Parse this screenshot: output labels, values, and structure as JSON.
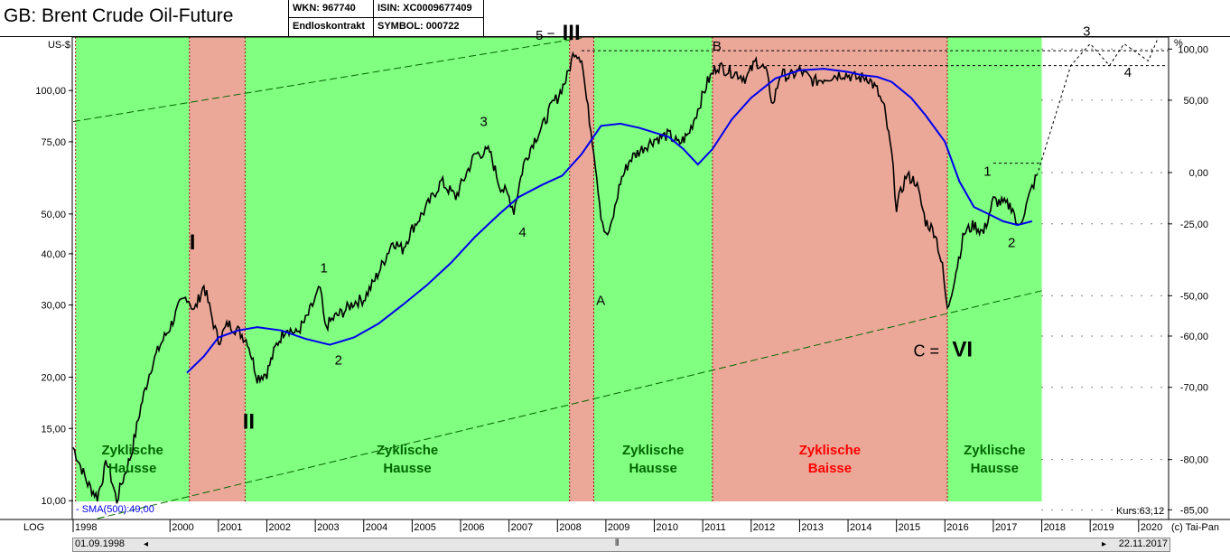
{
  "header": {
    "title": "GB: Brent Crude Oil-Future",
    "wkn": "WKN: 967740",
    "contract": "Endloskontrakt",
    "isin": "ISIN: XC0009677409",
    "symbol": "SYMBOL: 000722"
  },
  "footer": {
    "scale_mode": "LOG",
    "copyright": "(c) Tai-Pan",
    "start_date": "01.09.1998",
    "end_date": "22.11.2017",
    "sma_label": "- SMA(500):49,00",
    "kurs_label": "Kurs:63,12"
  },
  "colors": {
    "hausse": "#80ff80",
    "baisse": "#eba898",
    "price": "#000000",
    "sma": "#0000ee",
    "trend": "#006600",
    "zone_hausse_text": "#006600",
    "zone_baisse_text": "#ff0000"
  },
  "chart_data": {
    "type": "line",
    "ylabel_left": "US-$",
    "ylabel_right": "%",
    "y_scale": "log",
    "xlim": [
      1998.0,
      2020.6
    ],
    "ylim": [
      9.0,
      135.0
    ],
    "left_ticks": [
      {
        "value": 10,
        "label": "10,00"
      },
      {
        "value": 15,
        "label": "15,00"
      },
      {
        "value": 20,
        "label": "20,00"
      },
      {
        "value": 30,
        "label": "30,00"
      },
      {
        "value": 40,
        "label": "40,00"
      },
      {
        "value": 50,
        "label": "50,00"
      },
      {
        "value": 75,
        "label": "75,00"
      },
      {
        "value": 100,
        "label": "100,00"
      }
    ],
    "right_ticks": [
      {
        "price": 126.2,
        "label": "100,00"
      },
      {
        "price": 94.7,
        "label": "50,00"
      },
      {
        "price": 63.1,
        "label": "0,00"
      },
      {
        "price": 47.3,
        "label": "-25,00"
      },
      {
        "price": 31.6,
        "label": "-50,00"
      },
      {
        "price": 25.2,
        "label": "-60,00"
      },
      {
        "price": 18.9,
        "label": "-70,00"
      },
      {
        "price": 12.6,
        "label": "-80,00"
      },
      {
        "price": 9.5,
        "label": "-85,00"
      }
    ],
    "x_ticks": [
      "1998",
      "2000",
      "2001",
      "2002",
      "2003",
      "2004",
      "2005",
      "2006",
      "2007",
      "2008",
      "2009",
      "2010",
      "2011",
      "2012",
      "2013",
      "2014",
      "2015",
      "2016",
      "2017",
      "2018",
      "2019",
      "2020"
    ],
    "zones": [
      {
        "type": "hausse",
        "x0": 1998.05,
        "x1": 2000.4,
        "label": [
          "Zyklische",
          "Hausse"
        ]
      },
      {
        "type": "baisse",
        "x0": 2000.4,
        "x1": 2001.55,
        "label": []
      },
      {
        "type": "hausse",
        "x0": 2001.55,
        "x1": 2008.25,
        "label": [
          "Zyklische",
          "Hausse"
        ]
      },
      {
        "type": "baisse",
        "x0": 2008.25,
        "x1": 2008.75,
        "label": []
      },
      {
        "type": "hausse",
        "x0": 2008.75,
        "x1": 2011.2,
        "label": [
          "Zyklische",
          "Hausse"
        ]
      },
      {
        "type": "baisse",
        "x0": 2011.2,
        "x1": 2016.05,
        "label": [
          "Zyklische",
          "Baisse"
        ]
      },
      {
        "type": "hausse",
        "x0": 2016.05,
        "x1": 2018.0,
        "label": [
          "Zyklische",
          "Hausse"
        ]
      }
    ],
    "series": [
      {
        "name": "Brent",
        "x": [
          1998.0,
          1998.3,
          1998.5,
          1998.7,
          1998.9,
          1999.0,
          1999.2,
          1999.4,
          1999.6,
          1999.8,
          2000.0,
          2000.2,
          2000.35,
          2000.5,
          2000.7,
          2000.9,
          2001.0,
          2001.2,
          2001.4,
          2001.6,
          2001.8,
          2002.0,
          2002.2,
          2002.4,
          2002.6,
          2002.8,
          2003.0,
          2003.1,
          2003.2,
          2003.4,
          2003.6,
          2003.8,
          2004.0,
          2004.2,
          2004.4,
          2004.6,
          2004.8,
          2005.0,
          2005.3,
          2005.6,
          2005.9,
          2006.1,
          2006.3,
          2006.6,
          2006.8,
          2007.0,
          2007.1,
          2007.3,
          2007.5,
          2007.7,
          2007.9,
          2008.0,
          2008.2,
          2008.35,
          2008.5,
          2008.6,
          2008.75,
          2008.9,
          2009.0,
          2009.1,
          2009.3,
          2009.5,
          2009.8,
          2010.0,
          2010.3,
          2010.5,
          2010.7,
          2010.9,
          2011.1,
          2011.3,
          2011.5,
          2011.7,
          2011.9,
          2012.1,
          2012.3,
          2012.45,
          2012.6,
          2012.8,
          2013.0,
          2013.3,
          2013.6,
          2013.9,
          2014.2,
          2014.4,
          2014.6,
          2014.75,
          2014.9,
          2015.0,
          2015.2,
          2015.4,
          2015.6,
          2015.8,
          2015.95,
          2016.05,
          2016.2,
          2016.4,
          2016.6,
          2016.8,
          2017.0,
          2017.2,
          2017.4,
          2017.5,
          2017.65,
          2017.8,
          2017.9
        ],
        "values": [
          13.5,
          11.0,
          10.2,
          12.5,
          10.0,
          11.0,
          13.0,
          17.0,
          21.0,
          24.0,
          26.5,
          30.0,
          31.5,
          29.0,
          33.5,
          27.0,
          24.5,
          27.0,
          26.0,
          24.5,
          20.0,
          20.5,
          24.0,
          26.5,
          25.5,
          27.5,
          31.0,
          33.0,
          26.5,
          28.0,
          29.0,
          30.5,
          31.0,
          34.0,
          38.0,
          43.0,
          41.0,
          46.0,
          52.0,
          60.0,
          55.0,
          62.0,
          70.0,
          71.0,
          59.0,
          55.0,
          51.0,
          66.0,
          75.0,
          82.0,
          93.0,
          96.0,
          108.0,
          125.0,
          120.0,
          95.0,
          72.0,
          50.0,
          44.0,
          46.0,
          60.0,
          68.0,
          73.0,
          76.0,
          78.0,
          74.0,
          78.0,
          90.0,
          105.0,
          115.0,
          112.0,
          110.0,
          107.0,
          118.0,
          112.0,
          92.0,
          110.0,
          108.0,
          112.0,
          105.0,
          108.0,
          110.0,
          107.0,
          108.0,
          100.0,
          90.0,
          70.0,
          52.0,
          62.0,
          60.0,
          48.0,
          45.0,
          37.0,
          29.0,
          35.0,
          45.0,
          47.0,
          45.0,
          54.0,
          53.0,
          52.0,
          46.0,
          51.0,
          58.0,
          62.0
        ]
      },
      {
        "name": "SMA(500)",
        "x": [
          2000.35,
          2000.7,
          2001.0,
          2001.4,
          2001.8,
          2002.3,
          2002.8,
          2003.3,
          2003.8,
          2004.3,
          2004.8,
          2005.3,
          2005.8,
          2006.3,
          2006.8,
          2007.2,
          2007.7,
          2008.1,
          2008.5,
          2008.9,
          2009.3,
          2009.7,
          2010.0,
          2010.3,
          2010.6,
          2010.9,
          2011.2,
          2011.6,
          2012.0,
          2012.5,
          2013.0,
          2013.5,
          2014.0,
          2014.3,
          2014.6,
          2014.9,
          2015.3,
          2015.6,
          2016.0,
          2016.3,
          2016.6,
          2016.9,
          2017.2,
          2017.5,
          2017.8
        ],
        "values": [
          20.5,
          22.5,
          25.0,
          26.0,
          26.5,
          26.0,
          24.8,
          24.0,
          25.0,
          27.0,
          30.0,
          33.5,
          38.0,
          44.0,
          50.0,
          55.0,
          59.0,
          62.0,
          70.0,
          82.0,
          83.0,
          81.0,
          79.0,
          77.0,
          72.0,
          66.0,
          72.0,
          85.0,
          96.0,
          107.0,
          112.0,
          113.0,
          111.0,
          109.0,
          108.0,
          105.0,
          96.0,
          87.0,
          75.0,
          60.0,
          52.0,
          50.0,
          48.0,
          47.0,
          48.0
        ]
      }
    ],
    "trend_lines": [
      {
        "x": [
          1998.0,
          2008.5
        ],
        "values": [
          84.0,
          140.0
        ]
      },
      {
        "x": [
          1998.5,
          2018.0
        ],
        "values": [
          9.0,
          32.5
        ]
      }
    ],
    "projection": {
      "x": [
        2017.9,
        2018.6,
        2019.0,
        2019.4,
        2019.7,
        2020.2,
        2020.4
      ],
      "values": [
        62.0,
        115.0,
        130.0,
        115.0,
        130.0,
        118.0,
        145.0
      ]
    },
    "dotted_levels": [
      {
        "price": 125.0,
        "x0": 2008.5,
        "x1": 2020.6
      },
      {
        "price": 115.0,
        "x0": 2011.2,
        "x1": 2020.6
      },
      {
        "price": 66.5,
        "x0": 2017.0,
        "x1": 2018.0
      }
    ],
    "annotations": [
      {
        "text": "I",
        "x": 2000.4,
        "y": 41.0,
        "size": 24,
        "bold": true
      },
      {
        "text": "II",
        "x": 2001.5,
        "y": 15.0,
        "size": 24,
        "bold": true
      },
      {
        "text": "1",
        "x": 2003.1,
        "y": 36.0,
        "size": 15
      },
      {
        "text": "2",
        "x": 2003.4,
        "y": 21.5,
        "size": 15
      },
      {
        "text": "3",
        "x": 2006.4,
        "y": 82.0,
        "size": 15
      },
      {
        "text": "4",
        "x": 2007.2,
        "y": 44.0,
        "size": 15
      },
      {
        "text": "5 = ",
        "x": 2007.55,
        "y": 133.0,
        "size": 15
      },
      {
        "text": "III",
        "x": 2008.1,
        "y": 133.0,
        "size": 24,
        "bold": true
      },
      {
        "text": "A",
        "x": 2008.8,
        "y": 30.0,
        "size": 15
      },
      {
        "text": "B",
        "x": 2011.2,
        "y": 125.0,
        "size": 15
      },
      {
        "text": "1",
        "x": 2016.8,
        "y": 62.0,
        "size": 15
      },
      {
        "text": "2",
        "x": 2017.3,
        "y": 41.5,
        "size": 15
      },
      {
        "text": "C = ",
        "x": 2015.35,
        "y": 22.5,
        "size": 18
      },
      {
        "text": "VI",
        "x": 2016.15,
        "y": 22.5,
        "size": 24,
        "bold": true
      },
      {
        "text": "3",
        "x": 2018.85,
        "y": 136.0,
        "size": 15
      },
      {
        "text": "4",
        "x": 2019.7,
        "y": 108.0,
        "size": 15
      }
    ]
  }
}
